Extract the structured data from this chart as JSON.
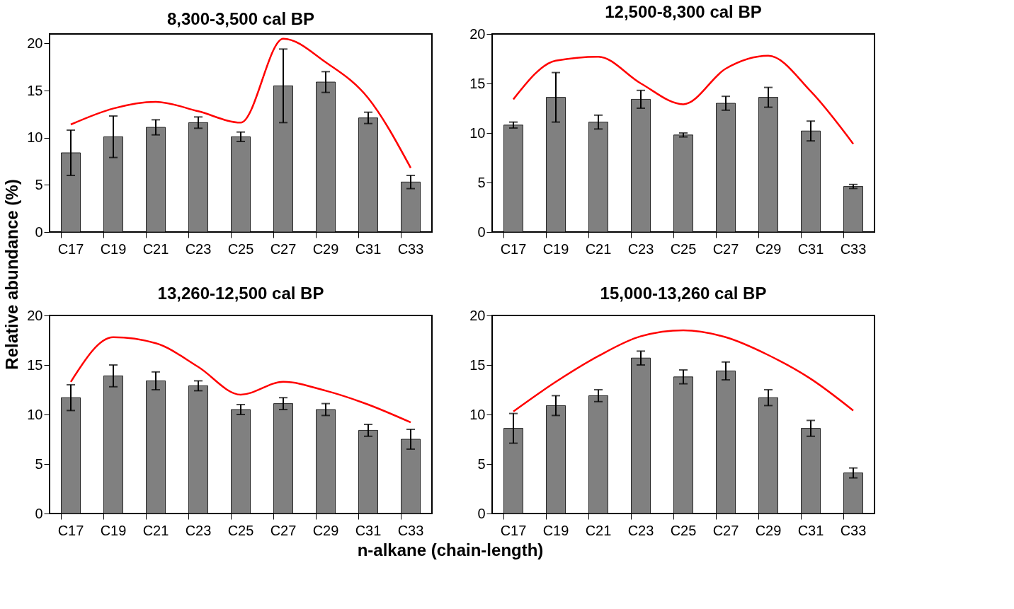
{
  "chart_data": [
    {
      "type": "bar",
      "title": "8,300-3,500 cal BP",
      "ylabel": "Relative abundance (%)",
      "xlabel": "n-alkane  (chain-length)",
      "categories": [
        "C17",
        "C19",
        "C21",
        "C23",
        "C25",
        "C27",
        "C29",
        "C31",
        "C33"
      ],
      "series": [
        {
          "type": "bar",
          "color": "#808080",
          "values": [
            8.4,
            10.1,
            11.1,
            11.6,
            10.1,
            15.5,
            15.9,
            12.1,
            5.3
          ],
          "errors": [
            2.4,
            2.2,
            0.8,
            0.6,
            0.5,
            3.9,
            1.1,
            0.6,
            0.7
          ]
        },
        {
          "type": "line",
          "color": "#ff0000",
          "values": [
            11.4,
            13.1,
            13.8,
            12.8,
            11.6,
            20.5,
            18.0,
            14.2,
            6.8
          ]
        }
      ],
      "ylim": [
        0,
        21
      ],
      "yticks": [
        0,
        5,
        10,
        15,
        20
      ],
      "grid": false
    },
    {
      "type": "bar",
      "title": "12,500-8,300 cal BP",
      "categories": [
        "C17",
        "C19",
        "C21",
        "C23",
        "C25",
        "C27",
        "C29",
        "C31",
        "C33"
      ],
      "series": [
        {
          "type": "bar",
          "color": "#808080",
          "values": [
            10.8,
            13.6,
            11.1,
            13.4,
            9.8,
            13.0,
            13.6,
            10.2,
            4.6
          ],
          "errors": [
            0.3,
            2.5,
            0.7,
            0.9,
            0.2,
            0.7,
            1.0,
            1.0,
            0.2
          ]
        },
        {
          "type": "line",
          "color": "#ff0000",
          "values": [
            13.4,
            17.3,
            17.7,
            15.0,
            12.9,
            16.5,
            17.8,
            14.2,
            8.9
          ]
        }
      ],
      "ylim": [
        0,
        20
      ],
      "yticks": [
        0,
        5,
        10,
        15,
        20
      ],
      "grid": false
    },
    {
      "type": "bar",
      "title": "13,260-12,500 cal BP",
      "categories": [
        "C17",
        "C19",
        "C21",
        "C23",
        "C25",
        "C27",
        "C29",
        "C31",
        "C33"
      ],
      "series": [
        {
          "type": "bar",
          "color": "#808080",
          "values": [
            11.7,
            13.9,
            13.4,
            12.9,
            10.5,
            11.1,
            10.5,
            8.4,
            7.5
          ],
          "errors": [
            1.3,
            1.1,
            0.9,
            0.5,
            0.5,
            0.6,
            0.6,
            0.6,
            1.0
          ]
        },
        {
          "type": "line",
          "color": "#ff0000",
          "values": [
            13.3,
            17.8,
            17.2,
            14.8,
            12.0,
            13.3,
            12.4,
            11.0,
            9.2
          ]
        }
      ],
      "ylim": [
        0,
        20
      ],
      "yticks": [
        0,
        5,
        10,
        15,
        20
      ],
      "grid": false
    },
    {
      "type": "bar",
      "title": "15,000-13,260 cal BP",
      "categories": [
        "C17",
        "C19",
        "C21",
        "C23",
        "C25",
        "C27",
        "C29",
        "C31",
        "C33"
      ],
      "series": [
        {
          "type": "bar",
          "color": "#808080",
          "values": [
            8.6,
            10.9,
            11.9,
            15.7,
            13.8,
            14.4,
            11.7,
            8.6,
            4.1
          ],
          "errors": [
            1.5,
            1.0,
            0.6,
            0.7,
            0.7,
            0.9,
            0.8,
            0.8,
            0.5
          ]
        },
        {
          "type": "line",
          "color": "#ff0000",
          "values": [
            10.3,
            13.3,
            15.9,
            17.9,
            18.5,
            17.8,
            16.0,
            13.6,
            10.4
          ]
        }
      ],
      "ylim": [
        0,
        20
      ],
      "yticks": [
        0,
        5,
        10,
        15,
        20
      ],
      "grid": false
    }
  ]
}
